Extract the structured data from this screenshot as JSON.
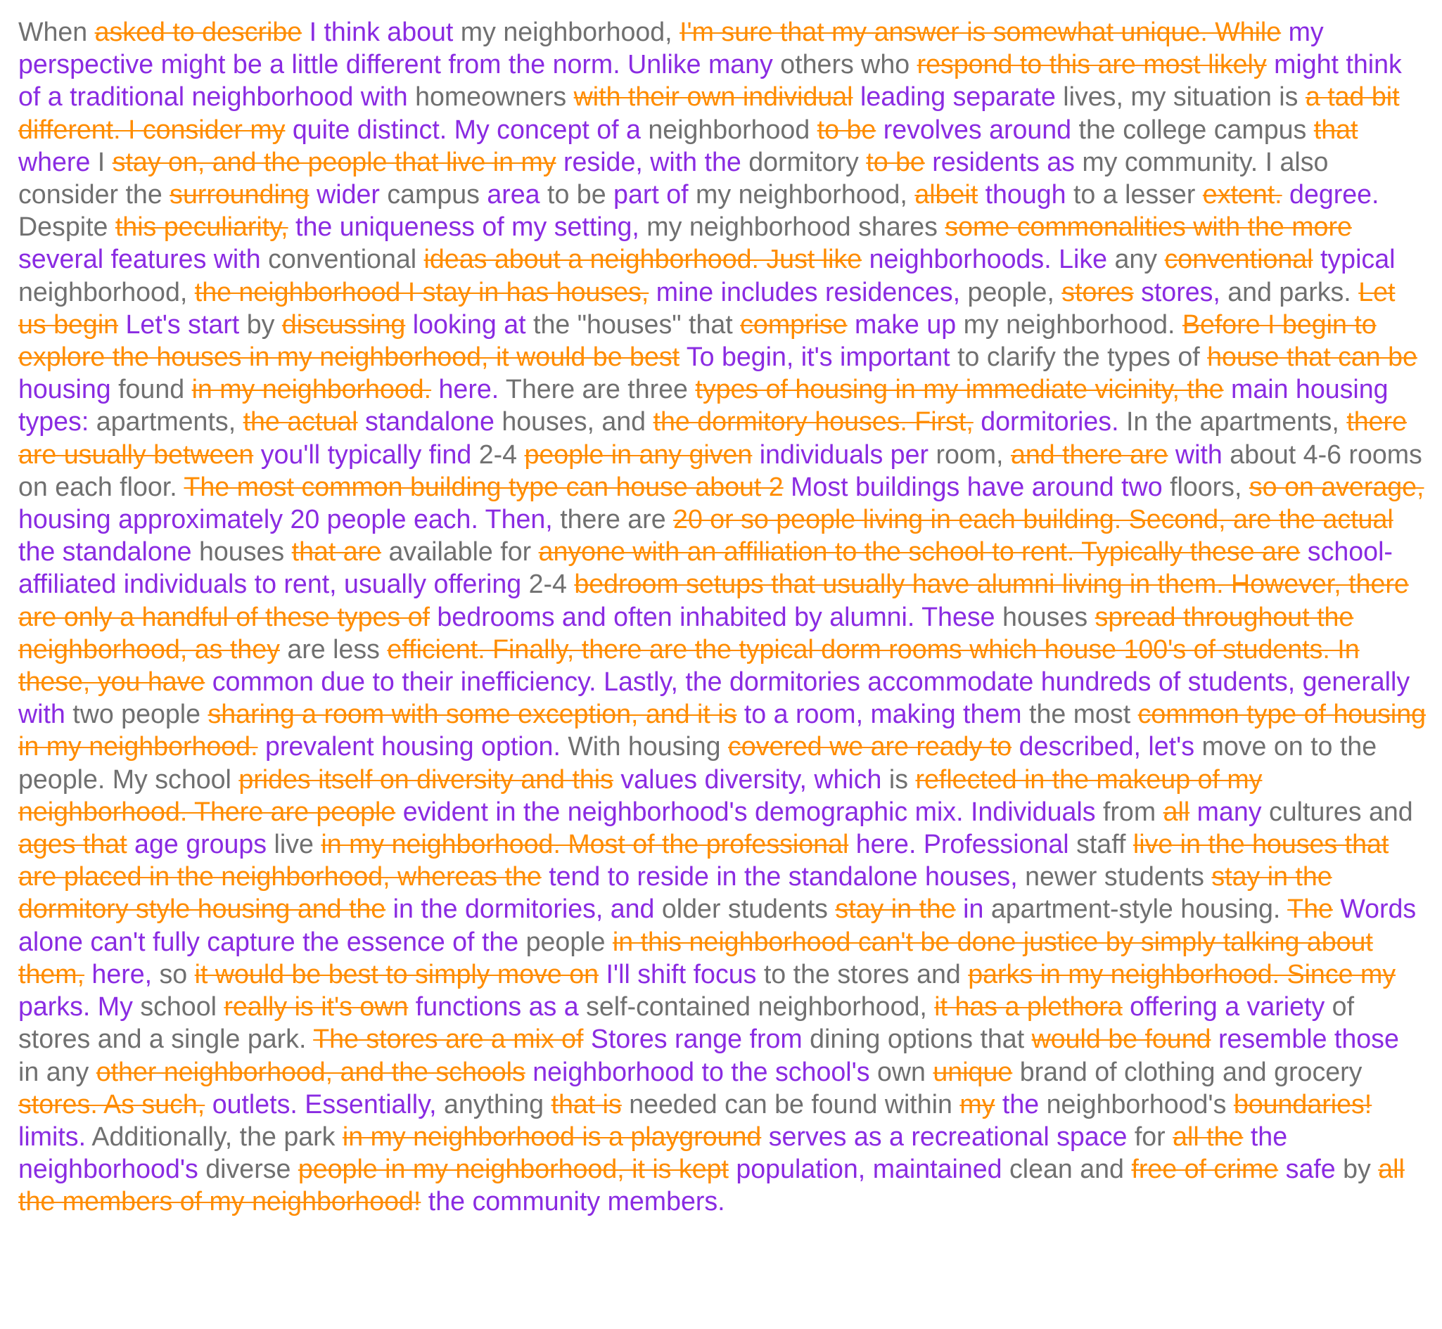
{
  "colors": {
    "kept": "#707070",
    "deleted": "#ff8c00",
    "inserted": "#8a2be2",
    "background": "#ffffff"
  },
  "document": {
    "segments": [
      {
        "t": "k",
        "s": "When "
      },
      {
        "t": "d",
        "s": "asked to describe"
      },
      {
        "t": "i",
        "s": " I think about"
      },
      {
        "t": "k",
        "s": " my neighborhood, "
      },
      {
        "t": "d",
        "s": "I'm sure that my answer is somewhat unique. While"
      },
      {
        "t": "i",
        "s": " my perspective might be a little different from the norm. Unlike many"
      },
      {
        "t": "k",
        "s": " others who "
      },
      {
        "t": "d",
        "s": "respond to this are most likely"
      },
      {
        "t": "i",
        "s": " might think of a traditional neighborhood with"
      },
      {
        "t": "k",
        "s": " homeowners "
      },
      {
        "t": "d",
        "s": "with their own individual"
      },
      {
        "t": "i",
        "s": " leading separate"
      },
      {
        "t": "k",
        "s": " lives, my situation is "
      },
      {
        "t": "d",
        "s": "a tad bit different. I consider my"
      },
      {
        "t": "i",
        "s": " quite distinct. My concept of a"
      },
      {
        "t": "k",
        "s": " neighborhood "
      },
      {
        "t": "d",
        "s": "to be"
      },
      {
        "t": "i",
        "s": " revolves around"
      },
      {
        "t": "k",
        "s": " the college campus "
      },
      {
        "t": "d",
        "s": "that"
      },
      {
        "t": "i",
        "s": " where"
      },
      {
        "t": "k",
        "s": " I "
      },
      {
        "t": "d",
        "s": "stay on, and the people that live in my"
      },
      {
        "t": "i",
        "s": " reside, with the"
      },
      {
        "t": "k",
        "s": " dormitory "
      },
      {
        "t": "d",
        "s": "to be"
      },
      {
        "t": "i",
        "s": " residents as"
      },
      {
        "t": "k",
        "s": " my community. I also consider the "
      },
      {
        "t": "d",
        "s": "surrounding"
      },
      {
        "t": "i",
        "s": " wider"
      },
      {
        "t": "k",
        "s": " campus "
      },
      {
        "t": "i",
        "s": "area"
      },
      {
        "t": "k",
        "s": " to be "
      },
      {
        "t": "i",
        "s": "part of"
      },
      {
        "t": "k",
        "s": " my neighborhood, "
      },
      {
        "t": "d",
        "s": "albeit"
      },
      {
        "t": "i",
        "s": " though"
      },
      {
        "t": "k",
        "s": " to a lesser "
      },
      {
        "t": "d",
        "s": "extent."
      },
      {
        "t": "i",
        "s": " degree."
      },
      {
        "t": "k",
        "s": " Despite "
      },
      {
        "t": "d",
        "s": "this peculiarity,"
      },
      {
        "t": "i",
        "s": " the uniqueness of my setting,"
      },
      {
        "t": "k",
        "s": " my neighborhood shares "
      },
      {
        "t": "d",
        "s": "some commonalities with the more"
      },
      {
        "t": "i",
        "s": " several features with"
      },
      {
        "t": "k",
        "s": " conventional "
      },
      {
        "t": "d",
        "s": "ideas about a neighborhood. Just like"
      },
      {
        "t": "i",
        "s": " neighborhoods. Like"
      },
      {
        "t": "k",
        "s": " any "
      },
      {
        "t": "d",
        "s": "conventional"
      },
      {
        "t": "i",
        "s": " typical"
      },
      {
        "t": "k",
        "s": " neighborhood, "
      },
      {
        "t": "d",
        "s": "the neighborhood I stay in has houses,"
      },
      {
        "t": "i",
        "s": " mine includes residences,"
      },
      {
        "t": "k",
        "s": " people, "
      },
      {
        "t": "d",
        "s": "stores"
      },
      {
        "t": "i",
        "s": " stores,"
      },
      {
        "t": "k",
        "s": " and parks. "
      },
      {
        "t": "d",
        "s": "Let us begin"
      },
      {
        "t": "i",
        "s": " Let's start"
      },
      {
        "t": "k",
        "s": " by "
      },
      {
        "t": "d",
        "s": "discussing"
      },
      {
        "t": "i",
        "s": " looking at"
      },
      {
        "t": "k",
        "s": " the \"houses\" that "
      },
      {
        "t": "d",
        "s": "comprise"
      },
      {
        "t": "i",
        "s": " make up"
      },
      {
        "t": "k",
        "s": " my neighborhood. "
      },
      {
        "t": "d",
        "s": "Before I begin to explore the houses in my neighborhood, it would be best"
      },
      {
        "t": "i",
        "s": " To begin, it's important"
      },
      {
        "t": "k",
        "s": " to clarify the types of "
      },
      {
        "t": "d",
        "s": "house that can be"
      },
      {
        "t": "i",
        "s": " housing"
      },
      {
        "t": "k",
        "s": " found "
      },
      {
        "t": "d",
        "s": "in my neighborhood."
      },
      {
        "t": "i",
        "s": " here."
      },
      {
        "t": "k",
        "s": " There are three "
      },
      {
        "t": "d",
        "s": "types of housing in my immediate vicinity, the"
      },
      {
        "t": "i",
        "s": " main housing types:"
      },
      {
        "t": "k",
        "s": " apartments, "
      },
      {
        "t": "d",
        "s": "the actual"
      },
      {
        "t": "i",
        "s": " standalone"
      },
      {
        "t": "k",
        "s": " houses, and "
      },
      {
        "t": "d",
        "s": "the dormitory houses. First,"
      },
      {
        "t": "i",
        "s": " dormitories."
      },
      {
        "t": "k",
        "s": " In the apartments, "
      },
      {
        "t": "d",
        "s": "there are usually between"
      },
      {
        "t": "i",
        "s": " you'll typically find"
      },
      {
        "t": "k",
        "s": " 2-4 "
      },
      {
        "t": "d",
        "s": "people in any given"
      },
      {
        "t": "i",
        "s": " individuals per"
      },
      {
        "t": "k",
        "s": " room, "
      },
      {
        "t": "d",
        "s": "and there are"
      },
      {
        "t": "i",
        "s": " with"
      },
      {
        "t": "k",
        "s": " about 4-6 rooms on each floor. "
      },
      {
        "t": "d",
        "s": "The most common building type can house about 2"
      },
      {
        "t": "i",
        "s": " Most buildings have around two"
      },
      {
        "t": "k",
        "s": " floors, "
      },
      {
        "t": "d",
        "s": "so on average,"
      },
      {
        "t": "i",
        "s": " housing approximately 20 people each. Then,"
      },
      {
        "t": "k",
        "s": " there are "
      },
      {
        "t": "d",
        "s": "20 or so people living in each building. Second, are the actual"
      },
      {
        "t": "i",
        "s": " the standalone"
      },
      {
        "t": "k",
        "s": " houses "
      },
      {
        "t": "d",
        "s": "that are"
      },
      {
        "t": "k",
        "s": " available for "
      },
      {
        "t": "d",
        "s": "anyone with an affiliation to the school to rent. Typically these are"
      },
      {
        "t": "i",
        "s": " school-affiliated individuals to rent, usually offering"
      },
      {
        "t": "k",
        "s": " 2-4 "
      },
      {
        "t": "d",
        "s": "bedroom setups that usually have alumni living in them. However, there are only a handful of these types of"
      },
      {
        "t": "i",
        "s": " bedrooms and often inhabited by alumni. These"
      },
      {
        "t": "k",
        "s": " houses "
      },
      {
        "t": "d",
        "s": "spread throughout the neighborhood, as they"
      },
      {
        "t": "k",
        "s": " are less "
      },
      {
        "t": "d",
        "s": "efficient. Finally, there are the typical dorm rooms which house 100's of students. In these, you have"
      },
      {
        "t": "i",
        "s": " common due to their inefficiency. Lastly, the dormitories accommodate hundreds of students, generally with"
      },
      {
        "t": "k",
        "s": " two people "
      },
      {
        "t": "d",
        "s": "sharing a room with some exception, and it is"
      },
      {
        "t": "i",
        "s": " to a room, making them"
      },
      {
        "t": "k",
        "s": " the most "
      },
      {
        "t": "d",
        "s": "common type of housing in my neighborhood."
      },
      {
        "t": "i",
        "s": " prevalent housing option."
      },
      {
        "t": "k",
        "s": " With housing "
      },
      {
        "t": "d",
        "s": "covered we are ready to"
      },
      {
        "t": "i",
        "s": " described, let's"
      },
      {
        "t": "k",
        "s": " move on to the people. My school "
      },
      {
        "t": "d",
        "s": "prides itself on diversity and this"
      },
      {
        "t": "i",
        "s": " values diversity, which"
      },
      {
        "t": "k",
        "s": " is "
      },
      {
        "t": "d",
        "s": "reflected in the makeup of my neighborhood. There are people"
      },
      {
        "t": "i",
        "s": " evident in the neighborhood's demographic mix. Individuals"
      },
      {
        "t": "k",
        "s": " from "
      },
      {
        "t": "d",
        "s": "all"
      },
      {
        "t": "i",
        "s": " many"
      },
      {
        "t": "k",
        "s": " cultures and "
      },
      {
        "t": "d",
        "s": "ages that"
      },
      {
        "t": "i",
        "s": " age groups"
      },
      {
        "t": "k",
        "s": " live "
      },
      {
        "t": "d",
        "s": "in my neighborhood. Most of the professional"
      },
      {
        "t": "i",
        "s": " here. Professional"
      },
      {
        "t": "k",
        "s": " staff "
      },
      {
        "t": "d",
        "s": "live in the houses that are placed in the neighborhood, whereas the"
      },
      {
        "t": "i",
        "s": " tend to reside in the standalone houses,"
      },
      {
        "t": "k",
        "s": " newer students "
      },
      {
        "t": "d",
        "s": "stay in the dormitory style housing and the"
      },
      {
        "t": "i",
        "s": " in the dormitories, and"
      },
      {
        "t": "k",
        "s": " older students "
      },
      {
        "t": "d",
        "s": "stay in the"
      },
      {
        "t": "i",
        "s": " in"
      },
      {
        "t": "k",
        "s": " apartment-style housing. "
      },
      {
        "t": "d",
        "s": "The"
      },
      {
        "t": "i",
        "s": " Words alone can't fully capture the essence of the"
      },
      {
        "t": "k",
        "s": " people "
      },
      {
        "t": "d",
        "s": "in this neighborhood can't be done justice by simply talking about them,"
      },
      {
        "t": "i",
        "s": " here,"
      },
      {
        "t": "k",
        "s": " so "
      },
      {
        "t": "d",
        "s": "it would be best to simply move on"
      },
      {
        "t": "i",
        "s": " I'll shift focus"
      },
      {
        "t": "k",
        "s": " to the stores and "
      },
      {
        "t": "d",
        "s": "parks in my neighborhood. Since my"
      },
      {
        "t": "i",
        "s": " parks. My"
      },
      {
        "t": "k",
        "s": " school "
      },
      {
        "t": "d",
        "s": "really is it's own"
      },
      {
        "t": "i",
        "s": " functions as a"
      },
      {
        "t": "k",
        "s": " self-contained neighborhood, "
      },
      {
        "t": "d",
        "s": "it has a plethora"
      },
      {
        "t": "i",
        "s": " offering a variety"
      },
      {
        "t": "k",
        "s": " of stores and a single park. "
      },
      {
        "t": "d",
        "s": "The stores are a mix of"
      },
      {
        "t": "i",
        "s": " Stores range from"
      },
      {
        "t": "k",
        "s": " dining options that "
      },
      {
        "t": "d",
        "s": "would be found"
      },
      {
        "t": "i",
        "s": " resemble those"
      },
      {
        "t": "k",
        "s": " in any "
      },
      {
        "t": "d",
        "s": "other neighborhood, and the schools"
      },
      {
        "t": "i",
        "s": " neighborhood to the school's"
      },
      {
        "t": "k",
        "s": " own "
      },
      {
        "t": "d",
        "s": "unique"
      },
      {
        "t": "k",
        "s": " brand of clothing and grocery "
      },
      {
        "t": "d",
        "s": "stores. As such,"
      },
      {
        "t": "i",
        "s": " outlets. Essentially,"
      },
      {
        "t": "k",
        "s": " anything "
      },
      {
        "t": "d",
        "s": "that is"
      },
      {
        "t": "k",
        "s": " needed can be found within "
      },
      {
        "t": "d",
        "s": "my"
      },
      {
        "t": "i",
        "s": " the"
      },
      {
        "t": "k",
        "s": " neighborhood's "
      },
      {
        "t": "d",
        "s": "boundaries!"
      },
      {
        "t": "i",
        "s": " limits."
      },
      {
        "t": "k",
        "s": " Additionally, the park "
      },
      {
        "t": "d",
        "s": "in my neighborhood is a playground"
      },
      {
        "t": "i",
        "s": " serves as a recreational space"
      },
      {
        "t": "k",
        "s": " for "
      },
      {
        "t": "d",
        "s": "all the"
      },
      {
        "t": "i",
        "s": " the neighborhood's"
      },
      {
        "t": "k",
        "s": " diverse "
      },
      {
        "t": "d",
        "s": "people in my neighborhood, it is kept"
      },
      {
        "t": "i",
        "s": " population, maintained"
      },
      {
        "t": "k",
        "s": " clean and "
      },
      {
        "t": "d",
        "s": "free of crime"
      },
      {
        "t": "i",
        "s": " safe"
      },
      {
        "t": "k",
        "s": " by "
      },
      {
        "t": "d",
        "s": "all the members of my neighborhood!"
      },
      {
        "t": "i",
        "s": " the community members."
      }
    ]
  }
}
